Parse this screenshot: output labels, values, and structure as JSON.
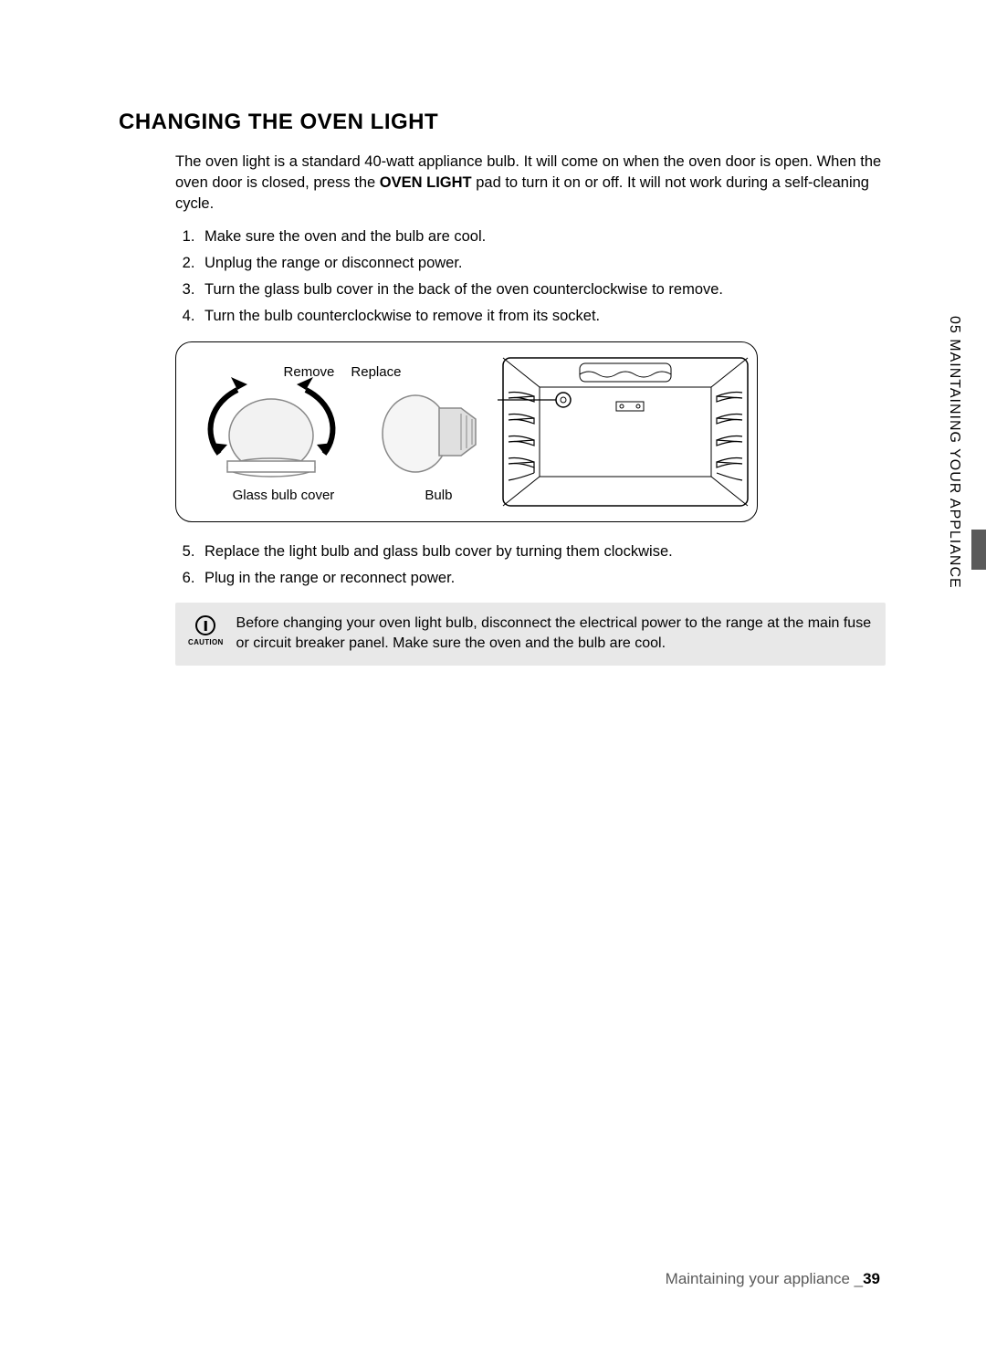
{
  "section_title": "CHANGING THE OVEN LIGHT",
  "intro_pre": "The oven light is a standard 40-watt appliance bulb. It will come on when the oven door is open. When the oven door is closed, press the ",
  "intro_bold": "OVEN LIGHT",
  "intro_post": " pad to turn it on or off. It will not work during a self-cleaning cycle.",
  "steps_a": [
    "Make sure the oven and the bulb are cool.",
    "Unplug the range or disconnect power.",
    "Turn the glass bulb cover in the back of the oven counterclockwise to remove.",
    "Turn the bulb counterclockwise to remove it from its socket."
  ],
  "steps_b": [
    "Replace the light bulb and glass bulb cover by turning them clockwise.",
    "Plug in the range or reconnect power."
  ],
  "steps_b_start": "5",
  "diagram": {
    "label_remove": "Remove",
    "label_replace": "Replace",
    "label_cover": "Glass bulb cover",
    "label_bulb": "Bulb"
  },
  "caution": {
    "word": "CAUTION",
    "text": "Before changing your oven light bulb, disconnect the electrical power to the range at the main fuse or circuit breaker panel. Make sure the oven and the bulb are cool."
  },
  "side_tab": "05  MAINTAINING YOUR APPLIANCE",
  "footer_text": "Maintaining your appliance _",
  "footer_page": "39",
  "colors": {
    "bg": "#ffffff",
    "text": "#000000",
    "caution_bg": "#e8e8e8",
    "footer_grey": "#5a5a5a",
    "tab_mark": "#5a5a5a"
  }
}
